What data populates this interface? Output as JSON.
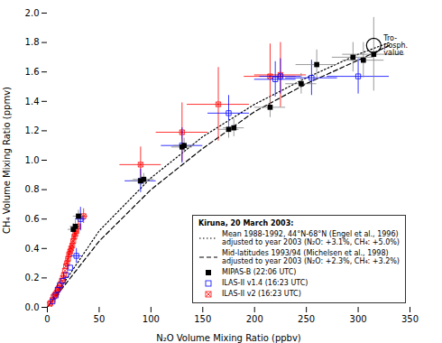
{
  "chart_data": {
    "type": "scatter",
    "xlabel": "N₂O Volume Mixing Ratio (ppbv)",
    "ylabel": "CH₄ Volume Mixing Ratio (ppmv)",
    "xlim": [
      0,
      350
    ],
    "ylim": [
      0,
      2
    ],
    "xticks": [
      0,
      50,
      100,
      150,
      200,
      250,
      300,
      350
    ],
    "yticks": [
      {
        "value": 0,
        "label": "0.0"
      },
      0.2,
      0.4,
      0.6,
      0.8,
      {
        "value": 1,
        "label": "1.0"
      },
      1.2,
      1.4,
      1.6,
      1.8,
      {
        "value": 2,
        "label": "2.0"
      }
    ],
    "grid": false,
    "legend": "lower right",
    "legend_title": "Kiruna, 20 March 2003:",
    "series": [
      {
        "name": "Mean 1988-1992, 44°N-68°N (Engel et al., 1996)\nadjusted to year 2003 (N₂O: +3.1%, CH₄: +5.0%)",
        "type": "line",
        "color": "black",
        "line_style": "dotted",
        "x": [
          0,
          50,
          100,
          150,
          200,
          250,
          300,
          330
        ],
        "values": [
          0.0,
          0.52,
          0.88,
          1.16,
          1.38,
          1.56,
          1.72,
          1.8
        ]
      },
      {
        "name": "Mid-latitudes 1993/94 (Michelsen et al., 1998)\nadjusted to year 2003 (N₂O: +2.3%, CH₄: +3.2%)",
        "type": "line",
        "color": "black",
        "line_style": "dashed",
        "x": [
          0,
          50,
          100,
          150,
          200,
          250,
          300,
          330
        ],
        "values": [
          0.0,
          0.45,
          0.8,
          1.08,
          1.33,
          1.52,
          1.68,
          1.78
        ]
      },
      {
        "name": "MIPAS-B (22:06 UTC)",
        "type": "scatter",
        "color": "black",
        "marker": "square",
        "error_color": "gray",
        "x": [
          25,
          27,
          30,
          90,
          93,
          130,
          132,
          175,
          180,
          215,
          245,
          260,
          295,
          305,
          315
        ],
        "values": [
          0.53,
          0.55,
          0.62,
          0.86,
          0.87,
          1.09,
          1.1,
          1.21,
          1.22,
          1.36,
          1.52,
          1.65,
          1.7,
          1.68,
          1.72
        ],
        "xerr": [
          5,
          5,
          5,
          10,
          10,
          10,
          10,
          10,
          10,
          15,
          15,
          20,
          20,
          20,
          30
        ],
        "yerr": [
          0.04,
          0.04,
          0.04,
          0.04,
          0.04,
          0.05,
          0.05,
          0.06,
          0.06,
          0.07,
          0.07,
          0.1,
          0.1,
          0.12,
          0.25
        ]
      },
      {
        "name": "ILAS-II v1.4 (16:23 UTC)",
        "type": "scatter",
        "color": "blue",
        "marker": "open_square",
        "x": [
          5,
          8,
          10,
          12,
          15,
          18,
          22,
          28,
          32,
          90,
          130,
          175,
          220,
          225,
          255,
          300
        ],
        "values": [
          0.04,
          0.08,
          0.12,
          0.15,
          0.18,
          0.22,
          0.27,
          0.35,
          0.6,
          0.86,
          1.1,
          1.32,
          1.55,
          1.57,
          1.56,
          1.57
        ],
        "xerr": [
          null,
          null,
          null,
          null,
          null,
          null,
          null,
          5,
          5,
          15,
          20,
          20,
          20,
          20,
          25,
          30
        ],
        "yerr": [
          null,
          null,
          null,
          null,
          null,
          null,
          null,
          0.05,
          0.08,
          0.08,
          0.12,
          0.12,
          0.12,
          0.12,
          0.12,
          0.12
        ]
      },
      {
        "name": "ILAS-II v2 (16:23 UTC)",
        "type": "scatter",
        "color": "red",
        "marker": "square_x",
        "x": [
          2,
          3,
          5,
          6,
          7,
          8,
          9,
          10,
          11,
          12,
          13,
          14,
          15,
          16,
          17,
          18,
          19,
          20,
          21,
          22,
          23,
          24,
          25,
          26,
          27,
          28,
          30,
          35,
          90,
          130,
          165,
          215,
          225
        ],
        "values": [
          0.02,
          0.03,
          0.05,
          0.07,
          0.08,
          0.09,
          0.1,
          0.12,
          0.13,
          0.14,
          0.16,
          0.18,
          0.2,
          0.22,
          0.25,
          0.28,
          0.3,
          0.33,
          0.36,
          0.38,
          0.4,
          0.42,
          0.45,
          0.48,
          0.5,
          0.52,
          0.55,
          0.62,
          0.97,
          1.19,
          1.38,
          1.57,
          1.58
        ],
        "xerr": [
          null,
          null,
          null,
          null,
          null,
          null,
          null,
          null,
          null,
          null,
          null,
          null,
          null,
          null,
          null,
          null,
          2,
          2,
          2,
          2,
          2,
          2,
          2,
          2,
          2,
          2,
          3,
          4,
          20,
          25,
          30,
          25,
          25
        ],
        "yerr": [
          null,
          null,
          null,
          null,
          null,
          null,
          null,
          null,
          null,
          null,
          null,
          null,
          null,
          null,
          null,
          null,
          0.03,
          0.03,
          0.03,
          0.03,
          0.03,
          0.03,
          0.03,
          0.03,
          0.03,
          0.03,
          0.04,
          0.05,
          0.12,
          0.2,
          0.25,
          0.22,
          0.22
        ]
      }
    ],
    "annotations": [
      {
        "x": 315,
        "y": 1.78,
        "text": "Tro-\nposph.\nvalue",
        "marker": "circle",
        "color": "black"
      }
    ]
  }
}
